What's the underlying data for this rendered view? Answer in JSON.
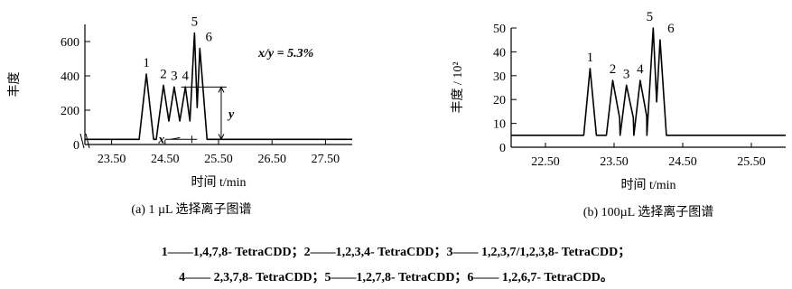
{
  "chart_data": [
    {
      "type": "line",
      "caption": "(a)  1 µL 选择离子图谱",
      "xlabel": "时间 t/min",
      "ylabel": "丰度",
      "xlim": [
        23.0,
        28.0
      ],
      "ylim": [
        0,
        700
      ],
      "xticks": [
        "23.50",
        "24.50",
        "25.50",
        "26.50",
        "27.50"
      ],
      "xtick_values": [
        23.5,
        24.5,
        25.5,
        26.5,
        27.5
      ],
      "yticks": [
        "0",
        "200",
        "400",
        "600"
      ],
      "ytick_values": [
        0,
        200,
        400,
        600
      ],
      "baseline": 30,
      "axis_break": true,
      "annotation": "x/y = 5.3%",
      "annotation_x_symbol": "x",
      "annotation_y_symbol": "y",
      "valley_height": 40,
      "y_reference_level": 335,
      "peaks": [
        {
          "label": "1",
          "x": 24.15,
          "y": 410
        },
        {
          "label": "2",
          "x": 24.47,
          "y": 345
        },
        {
          "label": "3",
          "x": 24.67,
          "y": 335
        },
        {
          "label": "4",
          "x": 24.88,
          "y": 335
        },
        {
          "label": "5",
          "x": 25.05,
          "y": 650
        },
        {
          "label": "6",
          "x": 25.15,
          "y": 560
        }
      ]
    },
    {
      "type": "line",
      "caption": "(b)  100µL 选择离子图谱",
      "xlabel": "时间 t/min",
      "ylabel": "丰度 / 10²",
      "xlim": [
        22.0,
        26.0
      ],
      "ylim": [
        0,
        50
      ],
      "xticks": [
        "22.50",
        "23.50",
        "24.50",
        "25.50"
      ],
      "xtick_values": [
        22.5,
        23.5,
        24.5,
        25.5
      ],
      "yticks": [
        "0",
        "10",
        "20",
        "30",
        "40",
        "50"
      ],
      "ytick_values": [
        0,
        10,
        20,
        30,
        40,
        50
      ],
      "baseline": 5,
      "peaks": [
        {
          "label": "1",
          "x": 23.15,
          "y": 33
        },
        {
          "label": "2",
          "x": 23.48,
          "y": 28
        },
        {
          "label": "3",
          "x": 23.68,
          "y": 26
        },
        {
          "label": "4",
          "x": 23.88,
          "y": 28
        },
        {
          "label": "5",
          "x": 24.07,
          "y": 50
        },
        {
          "label": "6",
          "x": 24.17,
          "y": 45
        }
      ]
    }
  ],
  "legend": {
    "line1": "1——1,4,7,8- TetraCDD；2——1,2,3,4- TetraCDD；3—— 1,2,3,7/1,2,3,8- TetraCDD；",
    "line2": "4—— 2,3,7,8- TetraCDD；5——1,2,7,8- TetraCDD；6—— 1,2,6,7- TetraCDD。"
  },
  "colors": {
    "ink": "#000000",
    "background": "#ffffff"
  }
}
